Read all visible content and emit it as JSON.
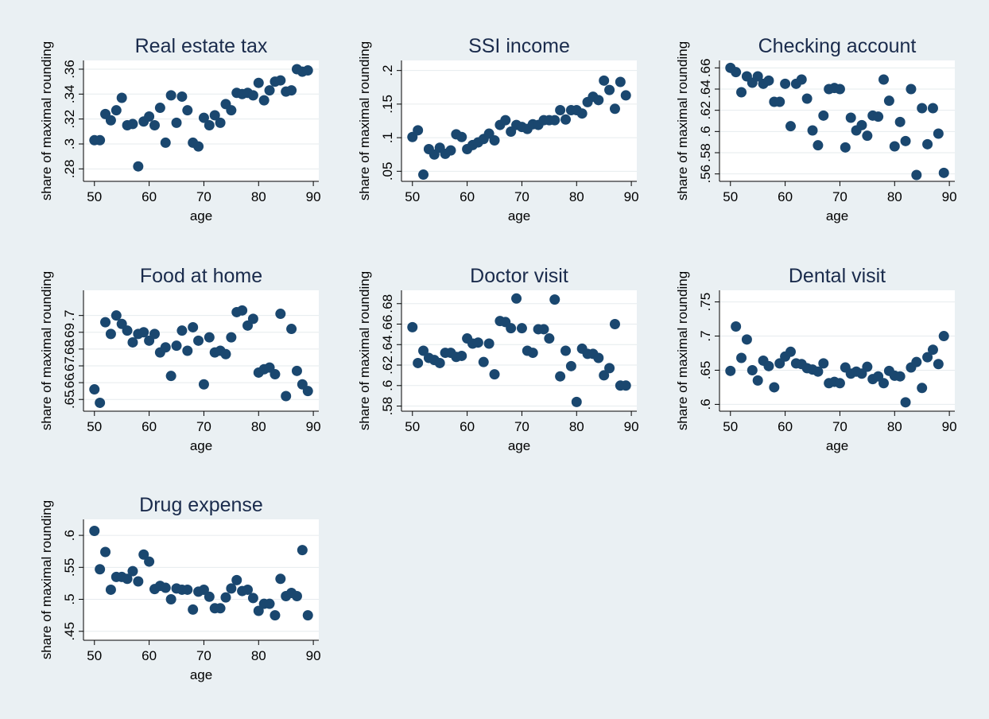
{
  "chart_data": [
    {
      "type": "scatter",
      "title": "Real estate tax",
      "xlabel": "age",
      "ylabel": "share of maximal rounding",
      "xlim": [
        48,
        91
      ],
      "xticks": [
        50,
        60,
        70,
        80,
        90
      ],
      "ylim": [
        0.27,
        0.367
      ],
      "yticks": [
        0.28,
        0.3,
        0.32,
        0.34,
        0.36
      ],
      "yticklabels": [
        ".28",
        ".3",
        ".32",
        ".34",
        ".36"
      ],
      "x": [
        50,
        51,
        52,
        53,
        54,
        55,
        56,
        57,
        58,
        59,
        60,
        61,
        62,
        63,
        64,
        65,
        66,
        67,
        68,
        69,
        70,
        71,
        72,
        73,
        74,
        75,
        76,
        77,
        78,
        79,
        80,
        81,
        82,
        83,
        84,
        85,
        86,
        87,
        88,
        89
      ],
      "y": [
        0.303,
        0.303,
        0.324,
        0.319,
        0.327,
        0.337,
        0.315,
        0.316,
        0.282,
        0.318,
        0.322,
        0.315,
        0.329,
        0.301,
        0.339,
        0.317,
        0.338,
        0.327,
        0.301,
        0.298,
        0.321,
        0.315,
        0.323,
        0.317,
        0.332,
        0.327,
        0.341,
        0.34,
        0.341,
        0.339,
        0.349,
        0.335,
        0.343,
        0.35,
        0.351,
        0.342,
        0.343,
        0.36,
        0.358,
        0.359
      ]
    },
    {
      "type": "scatter",
      "title": "SSI income",
      "xlabel": "age",
      "ylabel": "share of maximal rounding",
      "xlim": [
        48,
        91
      ],
      "xticks": [
        50,
        60,
        70,
        80,
        90
      ],
      "ylim": [
        0.035,
        0.215
      ],
      "yticks": [
        0.05,
        0.1,
        0.15,
        0.2
      ],
      "yticklabels": [
        ".05",
        ".1",
        ".15",
        ".2"
      ],
      "x": [
        50,
        51,
        52,
        53,
        54,
        55,
        56,
        57,
        58,
        59,
        60,
        61,
        62,
        63,
        64,
        65,
        66,
        67,
        68,
        69,
        70,
        71,
        72,
        73,
        74,
        75,
        76,
        77,
        78,
        79,
        80,
        81,
        82,
        83,
        84,
        85,
        86,
        87,
        88,
        89
      ],
      "y": [
        0.101,
        0.111,
        0.045,
        0.083,
        0.075,
        0.085,
        0.076,
        0.081,
        0.105,
        0.101,
        0.083,
        0.089,
        0.093,
        0.098,
        0.106,
        0.096,
        0.119,
        0.126,
        0.109,
        0.119,
        0.116,
        0.113,
        0.12,
        0.119,
        0.126,
        0.126,
        0.126,
        0.141,
        0.127,
        0.141,
        0.141,
        0.136,
        0.153,
        0.161,
        0.156,
        0.185,
        0.171,
        0.143,
        0.183,
        0.163
      ]
    },
    {
      "type": "scatter",
      "title": "Checking account",
      "xlabel": "age",
      "ylabel": "share of maximal rounding",
      "xlim": [
        48,
        91
      ],
      "xticks": [
        50,
        60,
        70,
        80,
        90
      ],
      "ylim": [
        0.553,
        0.667
      ],
      "yticks": [
        0.56,
        0.58,
        0.6,
        0.62,
        0.64,
        0.66
      ],
      "yticklabels": [
        ".56",
        ".58",
        ".6",
        ".62",
        ".64",
        ".66"
      ],
      "x": [
        50,
        51,
        52,
        53,
        54,
        55,
        56,
        57,
        58,
        59,
        60,
        61,
        62,
        63,
        64,
        65,
        66,
        67,
        68,
        69,
        70,
        71,
        72,
        73,
        74,
        75,
        76,
        77,
        78,
        79,
        80,
        81,
        82,
        83,
        84,
        85,
        86,
        87,
        88,
        89
      ],
      "y": [
        0.66,
        0.656,
        0.637,
        0.652,
        0.646,
        0.652,
        0.645,
        0.648,
        0.628,
        0.628,
        0.645,
        0.605,
        0.645,
        0.649,
        0.631,
        0.601,
        0.587,
        0.615,
        0.64,
        0.641,
        0.64,
        0.585,
        0.613,
        0.601,
        0.606,
        0.596,
        0.615,
        0.614,
        0.649,
        0.629,
        0.586,
        0.609,
        0.591,
        0.64,
        0.559,
        0.622,
        0.588,
        0.622,
        0.598,
        0.561
      ]
    },
    {
      "type": "scatter",
      "title": "Food at home",
      "xlabel": "age",
      "ylabel": "share of maximal rounding",
      "xlim": [
        48,
        91
      ],
      "xticks": [
        50,
        60,
        70,
        80,
        90
      ],
      "ylim": [
        0.643,
        0.715
      ],
      "yticks": [
        0.65,
        0.66,
        0.67,
        0.68,
        0.69,
        0.7
      ],
      "yticklabels": [
        ".65",
        ".66",
        ".67",
        ".68",
        ".69",
        ".7"
      ],
      "x": [
        50,
        51,
        52,
        53,
        54,
        55,
        56,
        57,
        58,
        59,
        60,
        61,
        62,
        63,
        64,
        65,
        66,
        67,
        68,
        69,
        70,
        71,
        72,
        73,
        74,
        75,
        76,
        77,
        78,
        79,
        80,
        81,
        82,
        83,
        84,
        85,
        86,
        87,
        88,
        89
      ],
      "y": [
        0.656,
        0.648,
        0.696,
        0.689,
        0.7,
        0.695,
        0.691,
        0.684,
        0.689,
        0.69,
        0.685,
        0.689,
        0.678,
        0.681,
        0.664,
        0.682,
        0.691,
        0.679,
        0.693,
        0.685,
        0.659,
        0.687,
        0.678,
        0.679,
        0.677,
        0.687,
        0.702,
        0.703,
        0.694,
        0.698,
        0.666,
        0.668,
        0.669,
        0.665,
        0.701,
        0.652,
        0.692,
        0.667,
        0.659,
        0.655
      ]
    },
    {
      "type": "scatter",
      "title": "Doctor visit",
      "xlabel": "age",
      "ylabel": "share of maximal rounding",
      "xlim": [
        48,
        91
      ],
      "xticks": [
        50,
        60,
        70,
        80,
        90
      ],
      "ylim": [
        0.575,
        0.693
      ],
      "yticks": [
        0.58,
        0.6,
        0.62,
        0.64,
        0.66,
        0.68
      ],
      "yticklabels": [
        ".58",
        ".6",
        ".62",
        ".64",
        ".66",
        ".68"
      ],
      "x": [
        50,
        51,
        52,
        53,
        54,
        55,
        56,
        57,
        58,
        59,
        60,
        61,
        62,
        63,
        64,
        65,
        66,
        67,
        68,
        69,
        70,
        71,
        72,
        73,
        74,
        75,
        76,
        77,
        78,
        79,
        80,
        81,
        82,
        83,
        84,
        85,
        86,
        87,
        88,
        89
      ],
      "y": [
        0.657,
        0.622,
        0.634,
        0.627,
        0.625,
        0.622,
        0.632,
        0.632,
        0.628,
        0.629,
        0.646,
        0.641,
        0.642,
        0.623,
        0.641,
        0.611,
        0.663,
        0.662,
        0.656,
        0.685,
        0.656,
        0.634,
        0.632,
        0.655,
        0.655,
        0.646,
        0.684,
        0.609,
        0.634,
        0.619,
        0.584,
        0.636,
        0.631,
        0.631,
        0.627,
        0.61,
        0.617,
        0.66,
        0.6,
        0.6
      ]
    },
    {
      "type": "scatter",
      "title": "Dental visit",
      "xlabel": "age",
      "ylabel": "share of maximal rounding",
      "xlim": [
        48,
        91
      ],
      "xticks": [
        50,
        60,
        70,
        80,
        90
      ],
      "ylim": [
        0.59,
        0.767
      ],
      "yticks": [
        0.6,
        0.65,
        0.7,
        0.75
      ],
      "yticklabels": [
        ".6",
        ".65",
        ".7",
        ".75"
      ],
      "x": [
        50,
        51,
        52,
        53,
        54,
        55,
        56,
        57,
        58,
        59,
        60,
        61,
        62,
        63,
        64,
        65,
        66,
        67,
        68,
        69,
        70,
        71,
        72,
        73,
        74,
        75,
        76,
        77,
        78,
        79,
        80,
        81,
        82,
        83,
        84,
        85,
        86,
        87,
        88,
        89
      ],
      "y": [
        0.649,
        0.714,
        0.668,
        0.695,
        0.65,
        0.635,
        0.664,
        0.656,
        0.625,
        0.66,
        0.67,
        0.677,
        0.66,
        0.659,
        0.653,
        0.651,
        0.648,
        0.66,
        0.631,
        0.633,
        0.631,
        0.654,
        0.645,
        0.648,
        0.645,
        0.655,
        0.637,
        0.641,
        0.631,
        0.649,
        0.642,
        0.641,
        0.603,
        0.654,
        0.662,
        0.624,
        0.669,
        0.68,
        0.659,
        0.7
      ]
    },
    {
      "type": "scatter",
      "title": "Drug expense",
      "xlabel": "age",
      "ylabel": "share of maximal rounding",
      "xlim": [
        48,
        91
      ],
      "xticks": [
        50,
        60,
        70,
        80,
        90
      ],
      "ylim": [
        0.436,
        0.625
      ],
      "yticks": [
        0.45,
        0.5,
        0.55,
        0.6
      ],
      "yticklabels": [
        ".45",
        ".5",
        ".55",
        ".6"
      ],
      "x": [
        50,
        51,
        52,
        53,
        54,
        55,
        56,
        57,
        58,
        59,
        60,
        61,
        62,
        63,
        64,
        65,
        66,
        67,
        68,
        69,
        70,
        71,
        72,
        73,
        74,
        75,
        76,
        77,
        78,
        79,
        80,
        81,
        82,
        83,
        84,
        85,
        86,
        87,
        88,
        89
      ],
      "y": [
        0.607,
        0.547,
        0.574,
        0.515,
        0.535,
        0.535,
        0.532,
        0.544,
        0.528,
        0.57,
        0.559,
        0.516,
        0.521,
        0.518,
        0.5,
        0.517,
        0.515,
        0.515,
        0.484,
        0.512,
        0.515,
        0.504,
        0.486,
        0.486,
        0.503,
        0.517,
        0.53,
        0.513,
        0.515,
        0.502,
        0.482,
        0.493,
        0.493,
        0.475,
        0.532,
        0.505,
        0.51,
        0.505,
        0.577,
        0.475
      ]
    }
  ]
}
